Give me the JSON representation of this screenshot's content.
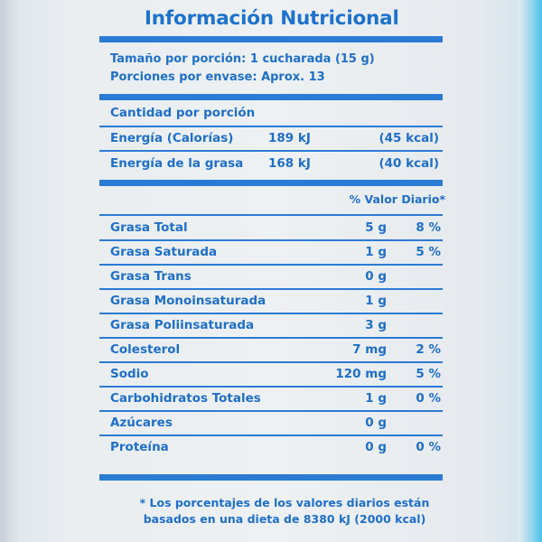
{
  "title": "Información Nutricional",
  "serving_size": "Tamaño por porción: 1 cucharada (15 g)",
  "servings_per_container": "Porciones por envase: Aprox. 13",
  "amount_per_serving": "Cantidad por porción",
  "energy_rows": [
    {
      "name": "Energía (Calorías)",
      "kj": "189 kJ",
      "kcal": "(45 kcal)"
    },
    {
      "name": "Energía de la grasa",
      "kj": "168 kJ",
      "kcal": "(40 kcal)"
    }
  ],
  "daily_value_header": "% Valor Diario*",
  "nutrients": [
    {
      "name": "Grasa Total",
      "amount": "5 g",
      "dv": "8 %"
    },
    {
      "name": "Grasa Saturada",
      "amount": "1 g",
      "dv": "5 %"
    },
    {
      "name": "Grasa Trans",
      "amount": "0 g",
      "dv": ""
    },
    {
      "name": "Grasa Monoinsaturada",
      "amount": "1 g",
      "dv": ""
    },
    {
      "name": "Grasa Poliinsaturada",
      "amount": "3 g",
      "dv": ""
    },
    {
      "name": "Colesterol",
      "amount": "7 mg",
      "dv": "2 %"
    },
    {
      "name": "Sodio",
      "amount": "120 mg",
      "dv": "5 %"
    },
    {
      "name": "Carbohidratos Totales",
      "amount": "1 g",
      "dv": "0 %"
    },
    {
      "name": "Azúcares",
      "amount": "0 g",
      "dv": ""
    },
    {
      "name": "Proteína",
      "amount": "0 g",
      "dv": "0 %"
    }
  ],
  "footnote_line1": "* Los porcentajes de los valores diarios están",
  "footnote_line2": "basados en una dieta de 8380 kJ (2000 kcal)",
  "colors": {
    "ink": "#1e6fc8",
    "background": "#eef1f3"
  }
}
